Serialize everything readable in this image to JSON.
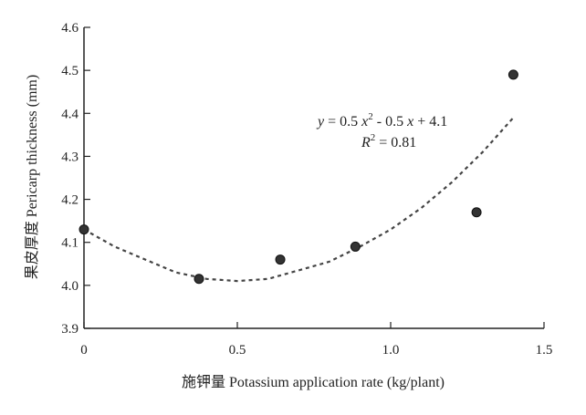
{
  "chart_data": {
    "type": "scatter",
    "xlabel": "施钾量 Potassium application rate (kg/plant)",
    "ylabel": "果皮厚度 Pericarp thickness (mm)",
    "xlim": [
      0,
      1.5
    ],
    "ylim": [
      3.9,
      4.6
    ],
    "x_ticks": [
      "0",
      "0.5",
      "1.0",
      "1.5"
    ],
    "y_ticks": [
      "3.9",
      "4.0",
      "4.1",
      "4.2",
      "4.3",
      "4.4",
      "4.5",
      "4.6"
    ],
    "points": [
      {
        "x": 0.0,
        "y": 4.13
      },
      {
        "x": 0.375,
        "y": 4.015
      },
      {
        "x": 0.64,
        "y": 4.06
      },
      {
        "x": 0.885,
        "y": 4.09
      },
      {
        "x": 1.28,
        "y": 4.17
      },
      {
        "x": 1.4,
        "y": 4.49
      }
    ],
    "trendline": {
      "style": "dashed",
      "x_range": [
        0,
        1.4
      ],
      "points": [
        {
          "x": 0.0,
          "y": 4.13
        },
        {
          "x": 0.1,
          "y": 4.09
        },
        {
          "x": 0.2,
          "y": 4.06
        },
        {
          "x": 0.3,
          "y": 4.03
        },
        {
          "x": 0.4,
          "y": 4.015
        },
        {
          "x": 0.5,
          "y": 4.01
        },
        {
          "x": 0.6,
          "y": 4.015
        },
        {
          "x": 0.7,
          "y": 4.035
        },
        {
          "x": 0.8,
          "y": 4.055
        },
        {
          "x": 0.9,
          "y": 4.09
        },
        {
          "x": 1.0,
          "y": 4.13
        },
        {
          "x": 1.1,
          "y": 4.18
        },
        {
          "x": 1.2,
          "y": 4.24
        },
        {
          "x": 1.3,
          "y": 4.31
        },
        {
          "x": 1.4,
          "y": 4.39
        }
      ]
    },
    "equation": {
      "line1": {
        "y": "y",
        "eq": " = 0.5 ",
        "x1": "x",
        "exp": "2",
        "rest": " - 0.5 ",
        "x2": "x",
        "tail": " + 4.1"
      },
      "line2": {
        "r": "R",
        "exp": "2",
        "rest": " = 0.81"
      }
    },
    "grid": false,
    "legend": "none",
    "colors": {
      "marker": "#333333",
      "trendline": "#444444",
      "axis": "#222222"
    }
  }
}
